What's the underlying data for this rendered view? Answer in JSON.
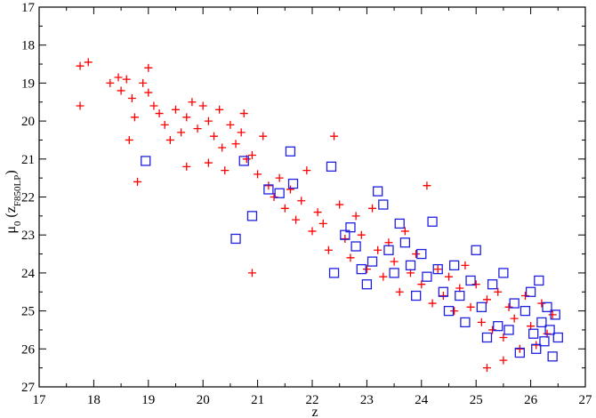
{
  "chart_data": {
    "type": "scatter",
    "title": "",
    "xlabel": "z",
    "ylabel": {
      "main": "μ",
      "sub": "0",
      "paren_open": " (z",
      "paren_sub": "F850LP",
      "paren_close": ")"
    },
    "xlim": [
      17,
      27
    ],
    "ylim": [
      27,
      17
    ],
    "y_inverted": true,
    "x_ticks": [
      17,
      18,
      19,
      20,
      21,
      22,
      23,
      24,
      25,
      26,
      27
    ],
    "y_ticks": [
      17,
      18,
      19,
      20,
      21,
      22,
      23,
      24,
      25,
      26,
      27
    ],
    "grid": false,
    "legend": "none",
    "series": [
      {
        "marker": "plus",
        "color": "#ff0000",
        "points": [
          [
            17.75,
            18.55
          ],
          [
            17.9,
            18.45
          ],
          [
            17.75,
            19.6
          ],
          [
            18.3,
            19.0
          ],
          [
            18.45,
            18.85
          ],
          [
            18.6,
            18.9
          ],
          [
            18.5,
            19.2
          ],
          [
            18.7,
            19.4
          ],
          [
            18.75,
            19.9
          ],
          [
            18.65,
            20.5
          ],
          [
            18.8,
            21.6
          ],
          [
            18.9,
            19.0
          ],
          [
            19.0,
            19.25
          ],
          [
            19.0,
            18.6
          ],
          [
            19.1,
            19.6
          ],
          [
            19.2,
            19.8
          ],
          [
            19.3,
            20.1
          ],
          [
            19.4,
            20.5
          ],
          [
            19.5,
            19.7
          ],
          [
            19.6,
            20.3
          ],
          [
            19.7,
            19.9
          ],
          [
            19.8,
            19.5
          ],
          [
            19.9,
            20.2
          ],
          [
            20.0,
            19.6
          ],
          [
            20.1,
            20.0
          ],
          [
            20.2,
            20.4
          ],
          [
            20.3,
            19.7
          ],
          [
            20.35,
            20.7
          ],
          [
            20.4,
            21.3
          ],
          [
            20.5,
            20.1
          ],
          [
            20.6,
            20.6
          ],
          [
            20.7,
            20.3
          ],
          [
            20.75,
            19.8
          ],
          [
            20.8,
            21.0
          ],
          [
            20.9,
            20.9
          ],
          [
            21.0,
            21.4
          ],
          [
            21.1,
            20.4
          ],
          [
            21.2,
            21.7
          ],
          [
            21.3,
            22.0
          ],
          [
            21.4,
            21.5
          ],
          [
            21.5,
            22.3
          ],
          [
            21.6,
            21.8
          ],
          [
            21.7,
            22.6
          ],
          [
            21.8,
            22.1
          ],
          [
            21.9,
            21.3
          ],
          [
            22.0,
            22.9
          ],
          [
            22.1,
            22.4
          ],
          [
            22.2,
            22.7
          ],
          [
            22.3,
            23.4
          ],
          [
            22.4,
            20.4
          ],
          [
            22.5,
            22.2
          ],
          [
            22.6,
            23.1
          ],
          [
            22.7,
            23.6
          ],
          [
            22.8,
            22.5
          ],
          [
            22.9,
            23.0
          ],
          [
            23.0,
            23.9
          ],
          [
            23.1,
            22.3
          ],
          [
            23.2,
            23.4
          ],
          [
            23.3,
            24.1
          ],
          [
            23.4,
            23.2
          ],
          [
            23.5,
            23.7
          ],
          [
            23.6,
            24.5
          ],
          [
            23.7,
            22.9
          ],
          [
            23.8,
            24.0
          ],
          [
            23.9,
            23.5
          ],
          [
            24.0,
            24.3
          ],
          [
            24.1,
            21.7
          ],
          [
            24.2,
            24.8
          ],
          [
            24.3,
            23.9
          ],
          [
            24.4,
            24.6
          ],
          [
            24.5,
            24.1
          ],
          [
            24.6,
            25.0
          ],
          [
            24.7,
            24.4
          ],
          [
            24.8,
            23.8
          ],
          [
            24.9,
            24.9
          ],
          [
            25.0,
            24.3
          ],
          [
            25.1,
            25.3
          ],
          [
            25.2,
            24.7
          ],
          [
            25.3,
            25.5
          ],
          [
            25.4,
            24.5
          ],
          [
            25.5,
            25.7
          ],
          [
            25.6,
            24.9
          ],
          [
            25.7,
            25.2
          ],
          [
            25.8,
            26.0
          ],
          [
            25.9,
            24.6
          ],
          [
            26.0,
            25.4
          ],
          [
            26.1,
            25.9
          ],
          [
            26.2,
            24.8
          ],
          [
            26.3,
            25.6
          ],
          [
            26.4,
            25.1
          ],
          [
            25.2,
            26.5
          ],
          [
            25.5,
            26.3
          ],
          [
            19.7,
            21.2
          ],
          [
            20.1,
            21.1
          ],
          [
            20.9,
            24.0
          ]
        ]
      },
      {
        "marker": "square",
        "color": "#2020e0",
        "points": [
          [
            18.95,
            21.05
          ],
          [
            20.6,
            23.1
          ],
          [
            20.75,
            21.05
          ],
          [
            20.9,
            22.5
          ],
          [
            21.2,
            21.8
          ],
          [
            21.4,
            21.9
          ],
          [
            21.6,
            20.8
          ],
          [
            21.65,
            21.65
          ],
          [
            22.35,
            21.2
          ],
          [
            22.4,
            24.0
          ],
          [
            22.6,
            23.0
          ],
          [
            22.7,
            22.8
          ],
          [
            22.8,
            23.3
          ],
          [
            22.9,
            23.9
          ],
          [
            23.0,
            24.3
          ],
          [
            23.1,
            23.7
          ],
          [
            23.2,
            21.85
          ],
          [
            23.3,
            22.2
          ],
          [
            23.4,
            23.4
          ],
          [
            23.5,
            24.0
          ],
          [
            23.6,
            22.7
          ],
          [
            23.7,
            23.2
          ],
          [
            23.8,
            23.8
          ],
          [
            23.9,
            24.6
          ],
          [
            24.0,
            23.5
          ],
          [
            24.1,
            24.1
          ],
          [
            24.2,
            22.65
          ],
          [
            24.3,
            23.9
          ],
          [
            24.4,
            24.5
          ],
          [
            24.5,
            25.0
          ],
          [
            24.6,
            23.8
          ],
          [
            24.7,
            24.6
          ],
          [
            24.8,
            25.3
          ],
          [
            24.9,
            24.2
          ],
          [
            25.0,
            23.4
          ],
          [
            25.1,
            24.9
          ],
          [
            25.2,
            25.7
          ],
          [
            25.3,
            24.3
          ],
          [
            25.4,
            25.4
          ],
          [
            25.5,
            24.0
          ],
          [
            25.6,
            25.5
          ],
          [
            25.7,
            24.8
          ],
          [
            25.8,
            26.1
          ],
          [
            25.9,
            25.0
          ],
          [
            26.0,
            24.5
          ],
          [
            26.05,
            25.6
          ],
          [
            26.1,
            26.0
          ],
          [
            26.15,
            24.2
          ],
          [
            26.2,
            25.3
          ],
          [
            26.25,
            25.8
          ],
          [
            26.3,
            24.9
          ],
          [
            26.35,
            25.5
          ],
          [
            26.4,
            26.2
          ],
          [
            26.45,
            25.1
          ],
          [
            26.5,
            25.7
          ]
        ]
      }
    ]
  }
}
